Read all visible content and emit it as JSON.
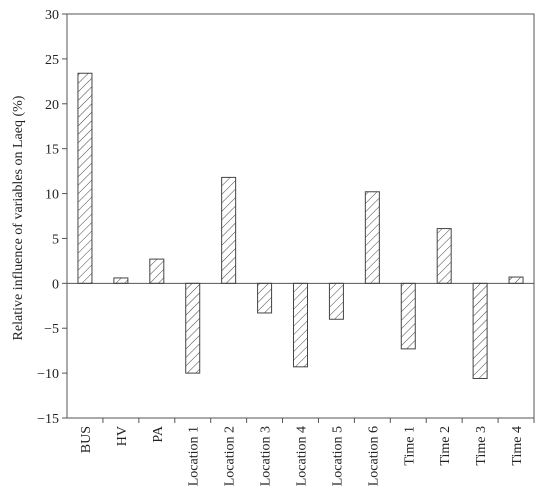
{
  "chart_data": {
    "type": "bar",
    "title": "",
    "xlabel": "",
    "ylabel": "Relative influence of variables on Laeq (%)",
    "ylim": [
      -15,
      30
    ],
    "yticks": [
      30,
      25,
      20,
      15,
      10,
      5,
      0,
      -5,
      -10,
      -15
    ],
    "ytick_labels": [
      "30",
      "25",
      "20",
      "15",
      "10",
      "5",
      "0",
      "−5",
      "−10",
      "−15"
    ],
    "grid": false,
    "legend": "none",
    "bar_fill": "hatched-diagonal",
    "bar_color": "#444444",
    "categories": [
      "BUS",
      "HV",
      "PA",
      "Location 1",
      "Location 2",
      "Location 3",
      "Location 4",
      "Location 5",
      "Location 6",
      "Time 1",
      "Time 2",
      "Time 3",
      "Time 4"
    ],
    "values": [
      23.4,
      0.6,
      2.7,
      -10.0,
      11.8,
      -3.3,
      -9.3,
      -4.0,
      10.2,
      -7.3,
      6.1,
      -10.6,
      0.7
    ]
  }
}
